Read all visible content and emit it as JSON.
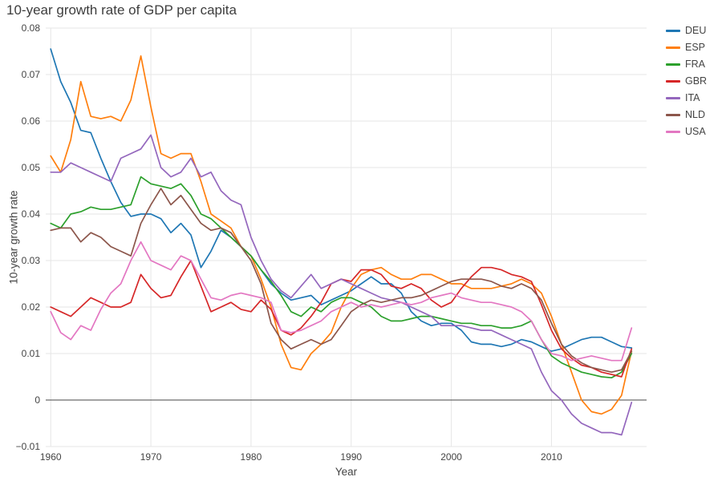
{
  "title": "10-year growth rate of GDP per capita",
  "chart_data": {
    "type": "line",
    "title": "10-year growth rate of GDP per capita",
    "xlabel": "Year",
    "ylabel": "10-year growth rate",
    "x_start": 1960,
    "x_step": 1,
    "xlim": [
      1959.5,
      2019.5
    ],
    "ylim": [
      -0.01,
      0.08
    ],
    "x_ticks": [
      "1960",
      "1970",
      "1980",
      "1990",
      "2000",
      "2010"
    ],
    "y_ticks": [
      "0.08",
      "0.07",
      "0.06",
      "0.05",
      "0.04",
      "0.03",
      "0.02",
      "0.01",
      "0",
      "-0.01"
    ],
    "grid": true,
    "legend_position": "top-right-outside",
    "zero_line": true,
    "colors": {
      "grid": "#e6e6e6",
      "zero_line": "#444444",
      "tick_text": "#444444"
    },
    "series": [
      {
        "name": "DEU",
        "color": "#1f77b4",
        "values": [
          0.0755,
          0.0685,
          0.064,
          0.058,
          0.0575,
          0.052,
          0.047,
          0.0425,
          0.0395,
          0.04,
          0.04,
          0.039,
          0.036,
          0.038,
          0.0355,
          0.0285,
          0.032,
          0.0365,
          0.035,
          0.033,
          0.031,
          0.028,
          0.025,
          0.023,
          0.0215,
          0.022,
          0.0225,
          0.0205,
          0.0215,
          0.0225,
          0.0235,
          0.025,
          0.0265,
          0.025,
          0.025,
          0.023,
          0.019,
          0.017,
          0.016,
          0.0165,
          0.0165,
          0.015,
          0.0125,
          0.012,
          0.012,
          0.0115,
          0.012,
          0.013,
          0.0125,
          0.0115,
          0.0105,
          0.011,
          0.012,
          0.013,
          0.0135,
          0.0135,
          0.0125,
          0.0115,
          0.0112
        ]
      },
      {
        "name": "ESP",
        "color": "#ff7f0e",
        "values": [
          0.0525,
          0.049,
          0.056,
          0.0685,
          0.061,
          0.0605,
          0.061,
          0.06,
          0.0645,
          0.074,
          0.063,
          0.053,
          0.052,
          0.053,
          0.053,
          0.047,
          0.04,
          0.0385,
          0.037,
          0.033,
          0.031,
          0.026,
          0.02,
          0.012,
          0.007,
          0.0065,
          0.01,
          0.012,
          0.0145,
          0.02,
          0.024,
          0.027,
          0.028,
          0.0285,
          0.027,
          0.026,
          0.026,
          0.027,
          0.027,
          0.026,
          0.025,
          0.025,
          0.024,
          0.024,
          0.024,
          0.0245,
          0.025,
          0.026,
          0.025,
          0.023,
          0.018,
          0.012,
          0.006,
          0.0,
          -0.0025,
          -0.003,
          -0.002,
          0.001,
          0.0105
        ]
      },
      {
        "name": "FRA",
        "color": "#2ca02c",
        "values": [
          0.038,
          0.037,
          0.04,
          0.0405,
          0.0415,
          0.041,
          0.041,
          0.0415,
          0.042,
          0.048,
          0.0465,
          0.046,
          0.0455,
          0.0465,
          0.044,
          0.04,
          0.039,
          0.037,
          0.035,
          0.033,
          0.031,
          0.028,
          0.0255,
          0.0225,
          0.019,
          0.018,
          0.02,
          0.019,
          0.021,
          0.022,
          0.022,
          0.021,
          0.02,
          0.018,
          0.017,
          0.017,
          0.0175,
          0.018,
          0.018,
          0.0175,
          0.017,
          0.0165,
          0.0165,
          0.016,
          0.016,
          0.0155,
          0.0155,
          0.016,
          0.017,
          0.013,
          0.0095,
          0.008,
          0.007,
          0.006,
          0.0055,
          0.005,
          0.0048,
          0.006,
          0.01
        ]
      },
      {
        "name": "GBR",
        "color": "#d62728",
        "values": [
          0.02,
          0.019,
          0.018,
          0.02,
          0.022,
          0.021,
          0.02,
          0.02,
          0.021,
          0.027,
          0.024,
          0.022,
          0.0225,
          0.0265,
          0.03,
          0.0245,
          0.019,
          0.02,
          0.021,
          0.0195,
          0.019,
          0.0215,
          0.0195,
          0.015,
          0.014,
          0.0155,
          0.018,
          0.021,
          0.025,
          0.026,
          0.0255,
          0.028,
          0.028,
          0.027,
          0.0245,
          0.024,
          0.025,
          0.024,
          0.0215,
          0.02,
          0.021,
          0.024,
          0.0265,
          0.0285,
          0.0285,
          0.028,
          0.027,
          0.0265,
          0.0255,
          0.0205,
          0.015,
          0.011,
          0.009,
          0.0075,
          0.007,
          0.006,
          0.0055,
          0.005,
          0.011
        ]
      },
      {
        "name": "ITA",
        "color": "#9467bd",
        "values": [
          0.049,
          0.049,
          0.051,
          0.05,
          0.049,
          0.048,
          0.047,
          0.052,
          0.053,
          0.054,
          0.057,
          0.05,
          0.048,
          0.049,
          0.052,
          0.048,
          0.049,
          0.045,
          0.043,
          0.042,
          0.035,
          0.03,
          0.026,
          0.0235,
          0.022,
          0.0245,
          0.027,
          0.024,
          0.025,
          0.026,
          0.025,
          0.024,
          0.023,
          0.022,
          0.0215,
          0.021,
          0.02,
          0.019,
          0.018,
          0.016,
          0.016,
          0.016,
          0.0155,
          0.015,
          0.015,
          0.014,
          0.013,
          0.012,
          0.011,
          0.006,
          0.002,
          0.0,
          -0.003,
          -0.005,
          -0.006,
          -0.007,
          -0.007,
          -0.0075,
          -0.0005
        ]
      },
      {
        "name": "NLD",
        "color": "#8c564b",
        "values": [
          0.0365,
          0.037,
          0.037,
          0.034,
          0.036,
          0.035,
          0.033,
          0.032,
          0.031,
          0.038,
          0.042,
          0.0455,
          0.042,
          0.044,
          0.041,
          0.038,
          0.0365,
          0.037,
          0.036,
          0.033,
          0.03,
          0.025,
          0.0165,
          0.013,
          0.011,
          0.012,
          0.013,
          0.012,
          0.013,
          0.016,
          0.019,
          0.0205,
          0.0215,
          0.021,
          0.0215,
          0.022,
          0.022,
          0.0225,
          0.0235,
          0.0245,
          0.0255,
          0.026,
          0.026,
          0.026,
          0.0255,
          0.0245,
          0.024,
          0.025,
          0.024,
          0.0215,
          0.0165,
          0.012,
          0.0095,
          0.008,
          0.007,
          0.0065,
          0.006,
          0.0065,
          0.0105
        ]
      },
      {
        "name": "USA",
        "color": "#e377c2",
        "values": [
          0.019,
          0.0145,
          0.013,
          0.016,
          0.015,
          0.0195,
          0.023,
          0.025,
          0.03,
          0.034,
          0.03,
          0.029,
          0.028,
          0.031,
          0.03,
          0.026,
          0.022,
          0.0215,
          0.0225,
          0.023,
          0.0225,
          0.022,
          0.021,
          0.015,
          0.0145,
          0.015,
          0.016,
          0.017,
          0.019,
          0.02,
          0.021,
          0.02,
          0.0205,
          0.02,
          0.0205,
          0.021,
          0.0205,
          0.021,
          0.022,
          0.0225,
          0.023,
          0.022,
          0.0215,
          0.021,
          0.021,
          0.0205,
          0.02,
          0.019,
          0.017,
          0.013,
          0.01,
          0.0095,
          0.0085,
          0.009,
          0.0095,
          0.009,
          0.0085,
          0.0085,
          0.0155
        ]
      }
    ]
  }
}
